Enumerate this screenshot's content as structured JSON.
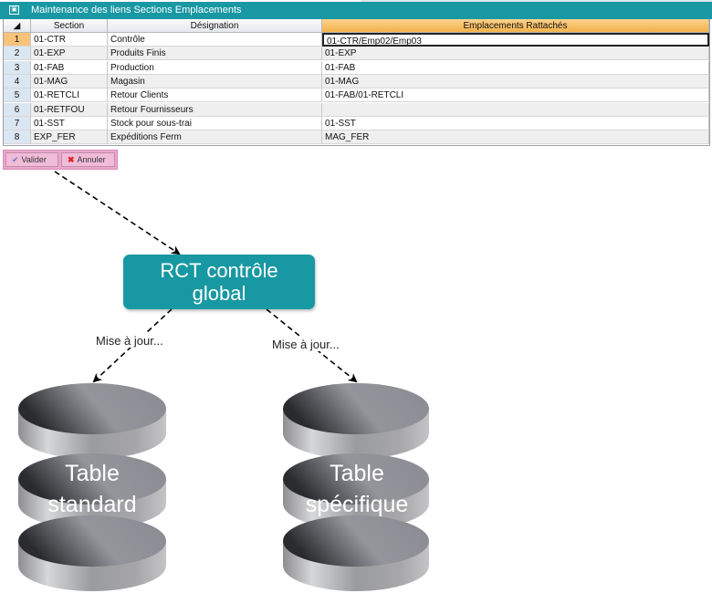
{
  "window": {
    "title": "Maintenance des liens Sections Emplacements",
    "icon": "window-icon"
  },
  "grid": {
    "columns": [
      "Section",
      "Désignation",
      "Emplacements Rattachés"
    ],
    "rows": [
      {
        "n": "1",
        "section": "01-CTR",
        "designation": "Contrôle",
        "emplacements": "01-CTR/Emp02/Emp03"
      },
      {
        "n": "2",
        "section": "01-EXP",
        "designation": "Produits Finis",
        "emplacements": "01-EXP"
      },
      {
        "n": "3",
        "section": "01-FAB",
        "designation": "Production",
        "emplacements": "01-FAB"
      },
      {
        "n": "4",
        "section": "01-MAG",
        "designation": "Magasin",
        "emplacements": "01-MAG"
      },
      {
        "n": "5",
        "section": "01-RETCLI",
        "designation": "Retour Clients",
        "emplacements": "01-FAB/01-RETCLI"
      },
      {
        "n": "6",
        "section": "01-RETFOU",
        "designation": "Retour Fournisseurs",
        "emplacements": ""
      },
      {
        "n": "7",
        "section": "01-SST",
        "designation": "Stock pour sous-trai",
        "emplacements": "01-SST"
      },
      {
        "n": "8",
        "section": "EXP_FER",
        "designation": "Expéditions Ferm",
        "emplacements": "MAG_FER"
      }
    ]
  },
  "buttons": {
    "validate": "Valider",
    "cancel": "Annuler"
  },
  "diagram": {
    "process": "RCT contrôle global",
    "edge_label_left": "Mise à jour...",
    "edge_label_right": "Mise à jour...",
    "db_left_line1": "Table",
    "db_left_line2": "standard",
    "db_right_line1": "Table",
    "db_right_line2": "spécifique"
  },
  "colors": {
    "teal": "#1898a3",
    "selected_header": "#f4b24a",
    "button_bar": "#e8a8cc"
  }
}
